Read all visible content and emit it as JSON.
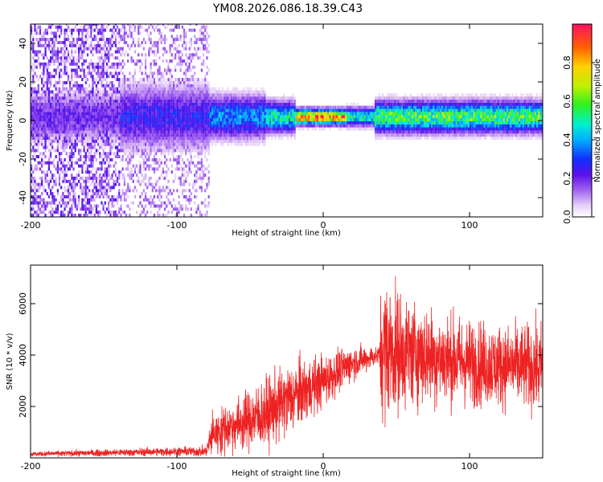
{
  "figure_title": "YM08.2026.086.18.39.C43",
  "chart_data": [
    {
      "type": "heatmap",
      "name": "spectrogram",
      "xlabel": "Height of straight line (km)",
      "ylabel": "Frequency (Hz)",
      "xlim": [
        -200,
        150
      ],
      "ylim": [
        -50,
        50
      ],
      "xticks": [
        -200,
        -100,
        0,
        100
      ],
      "yticks": [
        -40,
        -20,
        0,
        20,
        40
      ],
      "colorbar": {
        "label": "Normalized spectral amplitude",
        "range": [
          0.0,
          1.0
        ],
        "ticks": [
          0.0,
          0.2,
          0.4,
          0.6,
          0.8
        ],
        "tick_labels": [
          "0.0",
          "0.2",
          "0.4",
          "0.6",
          "0.8"
        ]
      },
      "description_values": {
        "noise_region_x": [
          -200,
          -78
        ],
        "signal_band_center_hz": 1,
        "peak_amplitude_x": [
          -20,
          15
        ]
      }
    },
    {
      "type": "line",
      "name": "snr",
      "xlabel": "Height of straight line (km)",
      "ylabel": "SNR (10 * v/v)",
      "xlim": [
        -200,
        150
      ],
      "ylim": [
        0,
        7500
      ],
      "xticks": [
        -200,
        -100,
        0,
        100
      ],
      "yticks": [
        2000,
        4000,
        6000
      ],
      "color": "#ee2222",
      "envelope": {
        "x": [
          -200,
          -150,
          -100,
          -80,
          -76,
          -60,
          -40,
          -20,
          0,
          20,
          38,
          40,
          60,
          80,
          100,
          120,
          150
        ],
        "mean": [
          150,
          200,
          250,
          250,
          900,
          1300,
          1700,
          2400,
          3000,
          3700,
          4000,
          4300,
          4100,
          3900,
          3700,
          3600,
          3500
        ],
        "amp": [
          80,
          120,
          150,
          180,
          700,
          900,
          1200,
          1200,
          900,
          600,
          300,
          2500,
          1800,
          1600,
          1500,
          1400,
          1500
        ]
      }
    }
  ]
}
